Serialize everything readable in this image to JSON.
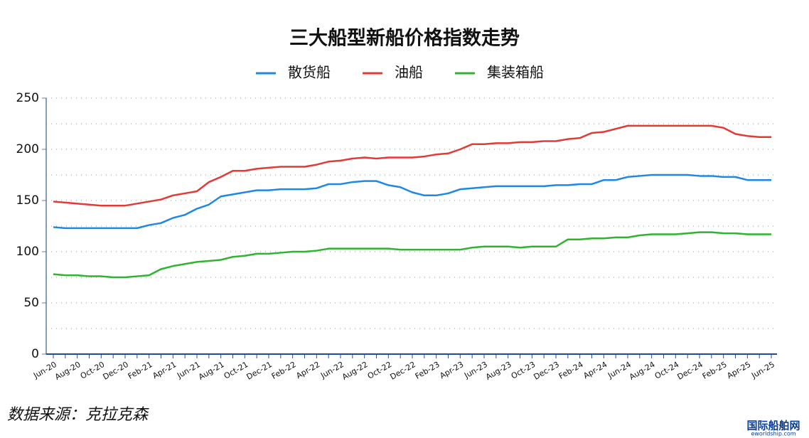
{
  "chart_data": {
    "type": "line",
    "title": "三大船型新船价格指数走势",
    "categories": [
      "Jun-20",
      null,
      "Aug-20",
      null,
      "Oct-20",
      null,
      "Dec-20",
      null,
      "Feb-21",
      null,
      "Apr-21",
      null,
      "Jun-21",
      null,
      "Aug-21",
      null,
      "Oct-21",
      null,
      "Dec-21",
      null,
      "Feb-22",
      null,
      "Apr-22",
      null,
      "Jun-22",
      null,
      "Aug-22",
      null,
      "Oct-22",
      null,
      "Dec-22",
      null,
      "Feb-23",
      null,
      "Apr-23",
      null,
      "Jun-23",
      null,
      "Aug-23",
      null,
      "Oct-23",
      null,
      "Dec-23",
      null,
      "Feb-24",
      null,
      "Apr-24",
      null,
      "Jun-24",
      null,
      "Aug-24",
      null,
      "Oct-24",
      null,
      "Dec-24",
      null,
      "Feb-25",
      null,
      "Apr-25",
      null,
      "Jun-25"
    ],
    "series": [
      {
        "name": "散货船",
        "color": "#1e88e5",
        "values": [
          124,
          123,
          123,
          123,
          123,
          123,
          123,
          123,
          126,
          128,
          133,
          136,
          142,
          146,
          154,
          156,
          158,
          160,
          160,
          161,
          161,
          161,
          162,
          166,
          166,
          168,
          169,
          169,
          165,
          163,
          158,
          155,
          155,
          157,
          161,
          162,
          163,
          164,
          164,
          164,
          164,
          164,
          165,
          165,
          166,
          166,
          170,
          170,
          173,
          174,
          175,
          175,
          175,
          175,
          174,
          174,
          173,
          173,
          170,
          170,
          170
        ]
      },
      {
        "name": "油船",
        "color": "#e53935",
        "values": [
          149,
          148,
          147,
          146,
          145,
          145,
          145,
          147,
          149,
          151,
          155,
          157,
          159,
          168,
          173,
          179,
          179,
          181,
          182,
          183,
          183,
          183,
          185,
          188,
          189,
          191,
          192,
          191,
          192,
          192,
          192,
          193,
          195,
          196,
          200,
          205,
          205,
          206,
          206,
          207,
          207,
          208,
          208,
          210,
          211,
          216,
          217,
          220,
          223,
          223,
          223,
          223,
          223,
          223,
          223,
          223,
          221,
          215,
          213,
          212,
          212
        ]
      },
      {
        "name": "集装箱船",
        "color": "#2db52d",
        "values": [
          78,
          77,
          77,
          76,
          76,
          75,
          75,
          76,
          77,
          83,
          86,
          88,
          90,
          91,
          92,
          95,
          96,
          98,
          98,
          99,
          100,
          100,
          101,
          103,
          103,
          103,
          103,
          103,
          103,
          102,
          102,
          102,
          102,
          102,
          102,
          104,
          105,
          105,
          105,
          104,
          105,
          105,
          105,
          112,
          112,
          113,
          113,
          114,
          114,
          116,
          117,
          117,
          117,
          118,
          119,
          119,
          118,
          118,
          117,
          117,
          117
        ]
      }
    ],
    "ylim": [
      0,
      250
    ],
    "yticks": [
      0,
      50,
      100,
      150,
      200,
      250
    ],
    "yminorticks": [
      25,
      75,
      125,
      175,
      225
    ],
    "grid": true,
    "source": "数据来源：克拉克森",
    "watermark": "国际船舶网",
    "watermark_url": "eworldship.com"
  }
}
